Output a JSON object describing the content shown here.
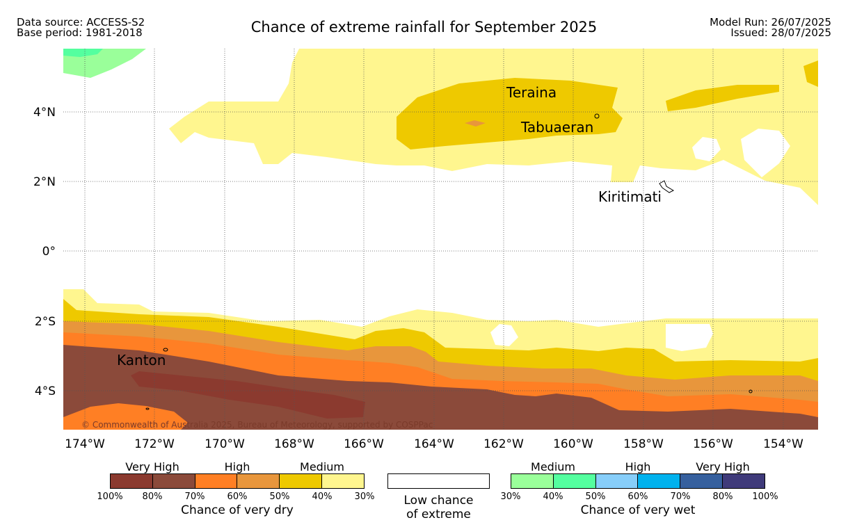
{
  "header": {
    "data_source": "Data source: ACCESS-S2",
    "base_period": "Base period: 1981-2018",
    "title": "Chance of extreme rainfall for September 2025",
    "model_run": "Model Run: 26/07/2025",
    "issued": "Issued: 28/07/2025"
  },
  "map": {
    "lat_labels": [
      "4°N",
      "2°N",
      "0°",
      "2°S",
      "4°S"
    ],
    "lon_labels": [
      "174°W",
      "172°W",
      "170°W",
      "168°W",
      "166°W",
      "164°W",
      "162°W",
      "160°W",
      "158°W",
      "156°W",
      "154°W"
    ],
    "places": [
      "Teraina",
      "Tabuaeran",
      "Kiritimati",
      "Kanton"
    ],
    "copyright": "© Commonwealth of Australia 2025, Bureau of Meteorology, supported by COSPPac"
  },
  "legend": {
    "dry": {
      "sub_labels": [
        "Very High",
        "High",
        "Medium"
      ],
      "ticks": [
        "100%",
        "80%",
        "70%",
        "60%",
        "50%",
        "40%",
        "30%"
      ],
      "caption": "Chance of very dry",
      "colors": [
        "#8b3a2f",
        "#8b4a3a",
        "#ff7f24",
        "#e8963c",
        "#eec900",
        "#fff68f"
      ]
    },
    "low": {
      "caption_line1": "Low chance",
      "caption_line2": "of extreme"
    },
    "wet": {
      "sub_labels": [
        "Medium",
        "High",
        "Very High"
      ],
      "ticks": [
        "30%",
        "40%",
        "50%",
        "60%",
        "70%",
        "80%",
        "100%"
      ],
      "caption": "Chance of very wet",
      "colors": [
        "#9aff9a",
        "#54ff9f",
        "#87cefa",
        "#00b2ee",
        "#36609e",
        "#3f3a7a"
      ]
    }
  }
}
